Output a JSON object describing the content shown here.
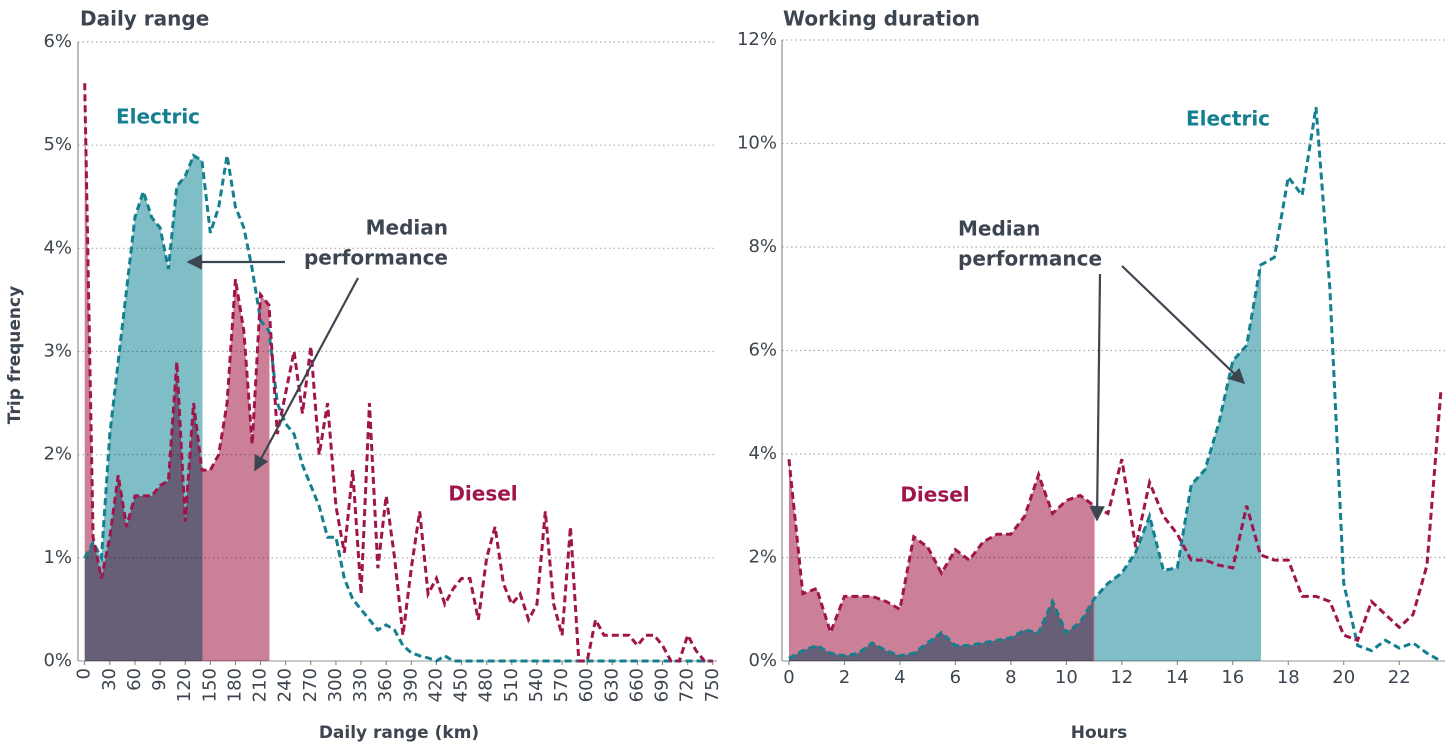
{
  "chart_data": [
    {
      "type": "line",
      "title": "Daily range",
      "xlabel": "Daily range (km)",
      "ylabel": "Trip frequency",
      "annotation": [
        "Median",
        "performance"
      ],
      "x": [
        0,
        10,
        20,
        30,
        40,
        50,
        60,
        70,
        80,
        90,
        100,
        110,
        120,
        130,
        140,
        150,
        160,
        170,
        180,
        190,
        200,
        210,
        220,
        230,
        240,
        250,
        260,
        270,
        280,
        290,
        300,
        310,
        320,
        330,
        340,
        350,
        360,
        370,
        380,
        390,
        400,
        410,
        420,
        430,
        440,
        450,
        460,
        470,
        480,
        490,
        500,
        510,
        520,
        530,
        540,
        550,
        560,
        570,
        580,
        590,
        600,
        610,
        620,
        630,
        640,
        650,
        660,
        670,
        680,
        690,
        700,
        710,
        720,
        730,
        740,
        750
      ],
      "series": [
        {
          "name": "Electric",
          "color": "#147f8e",
          "fill": "#7fbdc7",
          "median": 140,
          "values": [
            1.0,
            1.15,
            1.0,
            2.2,
            2.9,
            3.6,
            4.3,
            4.55,
            4.3,
            4.2,
            3.8,
            4.6,
            4.7,
            4.9,
            4.85,
            4.15,
            4.4,
            4.9,
            4.4,
            4.2,
            3.8,
            3.3,
            3.2,
            2.5,
            2.3,
            2.2,
            1.9,
            1.7,
            1.5,
            1.2,
            1.2,
            0.8,
            0.6,
            0.5,
            0.4,
            0.3,
            0.35,
            0.3,
            0.15,
            0.08,
            0.05,
            0.03,
            0,
            0.05,
            0,
            0,
            0,
            0,
            0,
            0,
            0,
            0,
            0,
            0,
            0,
            0,
            0,
            0,
            0,
            0,
            0,
            0,
            0,
            0,
            0,
            0,
            0,
            0,
            0,
            0,
            0,
            0,
            0,
            0,
            0,
            0
          ]
        },
        {
          "name": "Diesel",
          "color": "#a0154b",
          "fill": "#cc8098",
          "median": 220,
          "values": [
            5.6,
            1.2,
            0.8,
            1.2,
            1.8,
            1.3,
            1.6,
            1.6,
            1.6,
            1.7,
            1.75,
            2.9,
            1.35,
            2.5,
            1.85,
            1.85,
            2.0,
            2.5,
            3.7,
            3.2,
            2.1,
            3.55,
            3.45,
            2.2,
            2.6,
            3.0,
            2.4,
            3.05,
            2.0,
            2.5,
            1.5,
            1.05,
            1.85,
            0.65,
            2.5,
            0.9,
            1.6,
            1.0,
            0.25,
            0.9,
            1.45,
            0.65,
            0.8,
            0.55,
            0.7,
            0.8,
            0.8,
            0.4,
            1.0,
            1.3,
            0.75,
            0.55,
            0.65,
            0.4,
            0.55,
            1.45,
            0.55,
            0.25,
            1.3,
            0,
            0,
            0.4,
            0.25,
            0.25,
            0.25,
            0.25,
            0.15,
            0.25,
            0.25,
            0.15,
            0,
            0,
            0.25,
            0.1,
            0,
            0
          ]
        }
      ],
      "xlim": [
        -8,
        755
      ],
      "ylim": [
        0,
        6
      ],
      "xticks": [
        0,
        30,
        60,
        90,
        120,
        150,
        180,
        210,
        240,
        270,
        300,
        330,
        360,
        390,
        420,
        450,
        480,
        510,
        540,
        570,
        600,
        630,
        660,
        690,
        720,
        750
      ],
      "yticks": [
        {
          "value": 0,
          "label": "0%"
        },
        {
          "value": 1,
          "label": "1%"
        },
        {
          "value": 2,
          "label": "2%"
        },
        {
          "value": 3,
          "label": "3%"
        },
        {
          "value": 4,
          "label": "4%"
        },
        {
          "value": 5,
          "label": "5%"
        },
        {
          "value": 6,
          "label": "6%"
        }
      ],
      "grid": true
    },
    {
      "type": "line",
      "title": "Working duration",
      "xlabel": "Hours",
      "annotation": [
        "Median",
        "performance"
      ],
      "x": [
        0,
        0.5,
        1,
        1.5,
        2,
        2.5,
        3,
        3.5,
        4,
        4.5,
        5,
        5.5,
        6,
        6.5,
        7,
        7.5,
        8,
        8.5,
        9,
        9.5,
        10,
        10.5,
        11,
        11.5,
        12,
        12.5,
        13,
        13.5,
        14,
        14.5,
        15,
        15.5,
        16,
        16.5,
        17,
        17.5,
        18,
        18.5,
        19,
        19.5,
        20,
        20.5,
        21,
        21.5,
        22,
        22.5,
        23,
        23.5
      ],
      "series": [
        {
          "name": "Electric",
          "color": "#147f8e",
          "fill": "#7fbdc7",
          "median": 17,
          "values": [
            0.05,
            0.2,
            0.3,
            0.15,
            0.1,
            0.15,
            0.35,
            0.2,
            0.1,
            0.15,
            0.35,
            0.55,
            0.3,
            0.3,
            0.35,
            0.4,
            0.45,
            0.6,
            0.55,
            1.15,
            0.55,
            0.75,
            1.2,
            1.5,
            1.7,
            2.1,
            2.8,
            1.75,
            1.8,
            3.4,
            3.7,
            4.6,
            5.8,
            6.1,
            7.65,
            7.8,
            9.35,
            9.0,
            10.7,
            7.2,
            1.5,
            0.3,
            0.2,
            0.4,
            0.25,
            0.35,
            0.15,
            0
          ]
        },
        {
          "name": "Diesel",
          "color": "#a0154b",
          "fill": "#cc8098",
          "median": 11,
          "values": [
            3.9,
            1.3,
            1.4,
            0.55,
            1.25,
            1.25,
            1.25,
            1.15,
            1.0,
            2.4,
            2.2,
            1.7,
            2.15,
            1.95,
            2.3,
            2.45,
            2.45,
            2.8,
            3.6,
            2.85,
            3.1,
            3.2,
            3.0,
            2.85,
            3.9,
            2.2,
            3.45,
            2.8,
            2.45,
            1.95,
            1.95,
            1.85,
            1.8,
            3.0,
            2.05,
            1.95,
            1.95,
            1.25,
            1.25,
            1.15,
            0.5,
            0.4,
            1.15,
            0.9,
            0.65,
            0.9,
            1.85,
            5.2
          ]
        }
      ],
      "xlim": [
        -0.25,
        23.65
      ],
      "ylim": [
        0,
        12
      ],
      "xticks": [
        0,
        2,
        4,
        6,
        8,
        10,
        12,
        14,
        16,
        18,
        20,
        22
      ],
      "yticks": [
        {
          "value": 0,
          "label": "0%"
        },
        {
          "value": 2,
          "label": "2%"
        },
        {
          "value": 4,
          "label": "4%"
        },
        {
          "value": 6,
          "label": "6%"
        },
        {
          "value": 8,
          "label": "8%"
        },
        {
          "value": 10,
          "label": "10%"
        },
        {
          "value": 12,
          "label": "12%"
        }
      ],
      "grid": true
    }
  ]
}
